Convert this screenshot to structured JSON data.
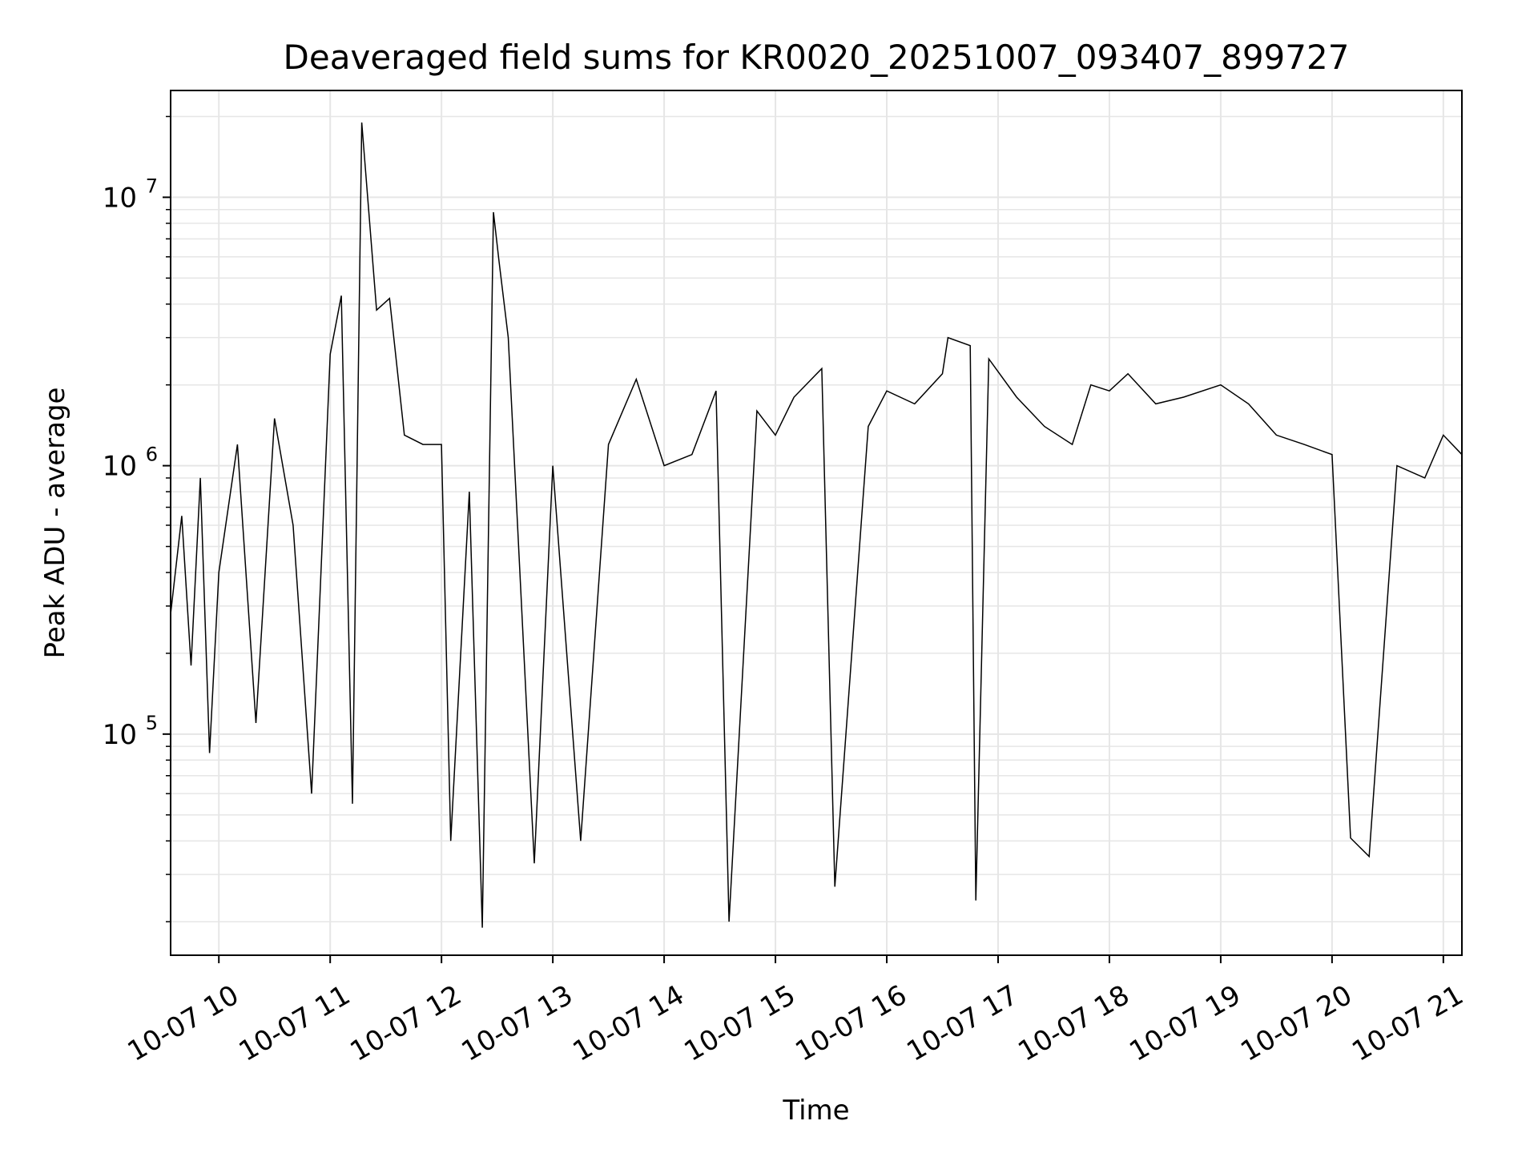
{
  "chart_data": {
    "type": "line",
    "title": "Deaveraged field sums for KR0020_20251007_093407_899727",
    "xlabel": "Time",
    "ylabel": "Peak ADU - average",
    "y_scale": "log",
    "ylim": [
      15000,
      25000000
    ],
    "xlim": [
      "2025-10-07 09:34",
      "2025-10-07 21:10"
    ],
    "grid": true,
    "legend": "none",
    "line_color": "#000000",
    "grid_color": "#e6e6e6",
    "x_ticks": [
      {
        "value": "2025-10-07 10:00",
        "label": "10-07 10"
      },
      {
        "value": "2025-10-07 11:00",
        "label": "10-07 11"
      },
      {
        "value": "2025-10-07 12:00",
        "label": "10-07 12"
      },
      {
        "value": "2025-10-07 13:00",
        "label": "10-07 13"
      },
      {
        "value": "2025-10-07 14:00",
        "label": "10-07 14"
      },
      {
        "value": "2025-10-07 15:00",
        "label": "10-07 15"
      },
      {
        "value": "2025-10-07 16:00",
        "label": "10-07 16"
      },
      {
        "value": "2025-10-07 17:00",
        "label": "10-07 17"
      },
      {
        "value": "2025-10-07 18:00",
        "label": "10-07 18"
      },
      {
        "value": "2025-10-07 19:00",
        "label": "10-07 19"
      },
      {
        "value": "2025-10-07 20:00",
        "label": "10-07 20"
      },
      {
        "value": "2025-10-07 21:00",
        "label": "10-07 21"
      }
    ],
    "y_ticks": [
      {
        "value": 100000,
        "base": "10",
        "exp": "5"
      },
      {
        "value": 1000000,
        "base": "10",
        "exp": "6"
      },
      {
        "value": 10000000,
        "base": "10",
        "exp": "7"
      }
    ],
    "series": [
      {
        "points": [
          [
            "2025-10-07 09:34",
            280000
          ],
          [
            "2025-10-07 09:40",
            650000
          ],
          [
            "2025-10-07 09:45",
            180000
          ],
          [
            "2025-10-07 09:50",
            900000
          ],
          [
            "2025-10-07 09:55",
            85000
          ],
          [
            "2025-10-07 10:00",
            400000
          ],
          [
            "2025-10-07 10:10",
            1200000
          ],
          [
            "2025-10-07 10:20",
            110000
          ],
          [
            "2025-10-07 10:30",
            1500000
          ],
          [
            "2025-10-07 10:40",
            600000
          ],
          [
            "2025-10-07 10:50",
            60000
          ],
          [
            "2025-10-07 11:00",
            2600000
          ],
          [
            "2025-10-07 11:06",
            4300000
          ],
          [
            "2025-10-07 11:12",
            55000
          ],
          [
            "2025-10-07 11:17",
            19000000
          ],
          [
            "2025-10-07 11:25",
            3800000
          ],
          [
            "2025-10-07 11:32",
            4200000
          ],
          [
            "2025-10-07 11:40",
            1300000
          ],
          [
            "2025-10-07 11:50",
            1200000
          ],
          [
            "2025-10-07 12:00",
            1200000
          ],
          [
            "2025-10-07 12:05",
            40000
          ],
          [
            "2025-10-07 12:15",
            800000
          ],
          [
            "2025-10-07 12:22",
            19000
          ],
          [
            "2025-10-07 12:28",
            8800000
          ],
          [
            "2025-10-07 12:31",
            5800000
          ],
          [
            "2025-10-07 12:36",
            3000000
          ],
          [
            "2025-10-07 12:50",
            33000
          ],
          [
            "2025-10-07 13:00",
            1000000
          ],
          [
            "2025-10-07 13:15",
            40000
          ],
          [
            "2025-10-07 13:30",
            1200000
          ],
          [
            "2025-10-07 13:45",
            2100000
          ],
          [
            "2025-10-07 14:00",
            1000000
          ],
          [
            "2025-10-07 14:15",
            1100000
          ],
          [
            "2025-10-07 14:28",
            1900000
          ],
          [
            "2025-10-07 14:35",
            20000
          ],
          [
            "2025-10-07 14:50",
            1600000
          ],
          [
            "2025-10-07 15:00",
            1300000
          ],
          [
            "2025-10-07 15:10",
            1800000
          ],
          [
            "2025-10-07 15:25",
            2300000
          ],
          [
            "2025-10-07 15:32",
            27000
          ],
          [
            "2025-10-07 15:50",
            1400000
          ],
          [
            "2025-10-07 16:00",
            1900000
          ],
          [
            "2025-10-07 16:15",
            1700000
          ],
          [
            "2025-10-07 16:30",
            2200000
          ],
          [
            "2025-10-07 16:33",
            3000000
          ],
          [
            "2025-10-07 16:45",
            2800000
          ],
          [
            "2025-10-07 16:48",
            24000
          ],
          [
            "2025-10-07 16:55",
            2500000
          ],
          [
            "2025-10-07 17:10",
            1800000
          ],
          [
            "2025-10-07 17:25",
            1400000
          ],
          [
            "2025-10-07 17:40",
            1200000
          ],
          [
            "2025-10-07 17:50",
            2000000
          ],
          [
            "2025-10-07 18:00",
            1900000
          ],
          [
            "2025-10-07 18:10",
            2200000
          ],
          [
            "2025-10-07 18:25",
            1700000
          ],
          [
            "2025-10-07 18:40",
            1800000
          ],
          [
            "2025-10-07 19:00",
            2000000
          ],
          [
            "2025-10-07 19:15",
            1700000
          ],
          [
            "2025-10-07 19:30",
            1300000
          ],
          [
            "2025-10-07 19:45",
            1200000
          ],
          [
            "2025-10-07 20:00",
            1100000
          ],
          [
            "2025-10-07 20:10",
            41000
          ],
          [
            "2025-10-07 20:20",
            35000
          ],
          [
            "2025-10-07 20:35",
            1000000
          ],
          [
            "2025-10-07 20:50",
            900000
          ],
          [
            "2025-10-07 21:00",
            1300000
          ],
          [
            "2025-10-07 21:10",
            1100000
          ]
        ]
      }
    ]
  }
}
